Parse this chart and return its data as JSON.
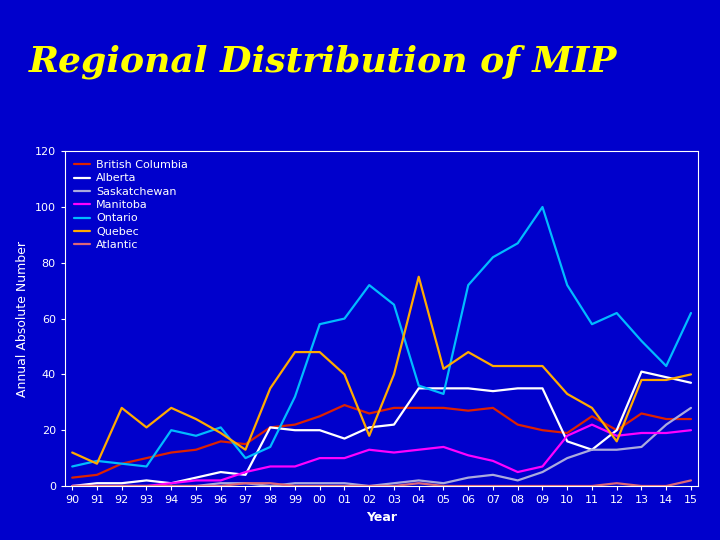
{
  "title": "Regional Distribution of MIP",
  "xlabel": "Year",
  "ylabel": "Annual Absolute Number",
  "years": [
    "90",
    "91",
    "92",
    "93",
    "94",
    "95",
    "96",
    "97",
    "98",
    "99",
    "00",
    "01",
    "02",
    "03",
    "04",
    "05",
    "06",
    "07",
    "08",
    "09",
    "10",
    "11",
    "12",
    "13",
    "14",
    "15"
  ],
  "series": [
    {
      "name": "British Columbia",
      "color": "#dd2200",
      "data": [
        3,
        4,
        8,
        10,
        12,
        13,
        16,
        15,
        21,
        22,
        25,
        29,
        26,
        28,
        28,
        28,
        27,
        28,
        22,
        20,
        19,
        25,
        20,
        26,
        24,
        24
      ]
    },
    {
      "name": "Alberta",
      "color": "#ffffff",
      "data": [
        0,
        1,
        1,
        2,
        1,
        3,
        5,
        4,
        21,
        20,
        20,
        17,
        21,
        22,
        35,
        35,
        35,
        34,
        35,
        35,
        16,
        13,
        20,
        41,
        39,
        37
      ]
    },
    {
      "name": "Saskatchewan",
      "color": "#aaaadd",
      "data": [
        0,
        0,
        0,
        0,
        0,
        0,
        1,
        1,
        0,
        1,
        1,
        1,
        0,
        1,
        2,
        1,
        3,
        4,
        2,
        5,
        10,
        13,
        13,
        14,
        22,
        28
      ]
    },
    {
      "name": "Manitoba",
      "color": "#ff00ff",
      "data": [
        0,
        0,
        0,
        0,
        1,
        2,
        2,
        5,
        7,
        7,
        10,
        10,
        13,
        12,
        13,
        14,
        11,
        9,
        5,
        7,
        18,
        22,
        18,
        19,
        19,
        20
      ]
    },
    {
      "name": "Ontario",
      "color": "#00bbff",
      "data": [
        7,
        9,
        8,
        7,
        20,
        18,
        21,
        10,
        14,
        32,
        58,
        60,
        72,
        65,
        36,
        33,
        72,
        82,
        87,
        100,
        72,
        58,
        62,
        52,
        43,
        62
      ]
    },
    {
      "name": "Quebec",
      "color": "#ffaa00",
      "data": [
        12,
        8,
        28,
        21,
        28,
        24,
        19,
        13,
        35,
        48,
        48,
        40,
        18,
        40,
        75,
        42,
        48,
        43,
        43,
        43,
        33,
        28,
        16,
        38,
        38,
        40
      ]
    },
    {
      "name": "Atlantic",
      "color": "#dd6677",
      "data": [
        0,
        0,
        0,
        0,
        0,
        0,
        0,
        1,
        1,
        0,
        0,
        0,
        0,
        0,
        1,
        0,
        0,
        0,
        0,
        0,
        0,
        0,
        1,
        0,
        0,
        2
      ]
    }
  ],
  "ylim": [
    0,
    120
  ],
  "yticks": [
    0,
    20,
    40,
    60,
    80,
    100,
    120
  ],
  "plot_bg": "#0000cc",
  "fig_top_bg": "#000044",
  "fig_bottom_bg": "#0000aa",
  "stripe1_color": "#ffff00",
  "stripe2_color": "#cc0066",
  "text_color": "#ffffff",
  "tick_color": "#ffffff",
  "axis_color": "#ffffff",
  "title_color": "#ffff00",
  "title_fontsize": 26,
  "axis_label_fontsize": 9,
  "tick_fontsize": 8,
  "legend_fontsize": 8,
  "line_width": 1.6
}
